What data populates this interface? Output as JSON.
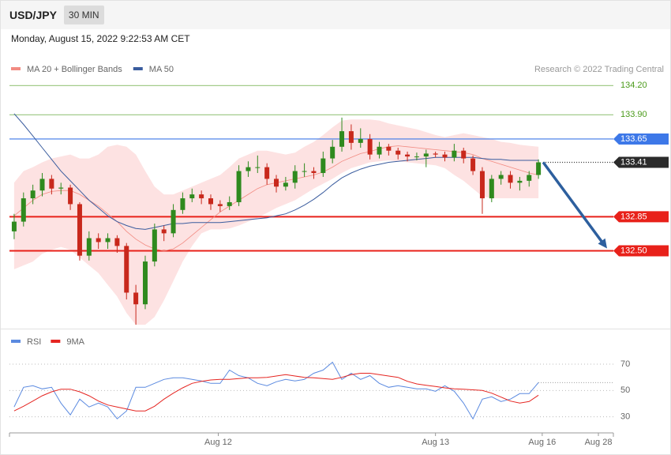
{
  "header": {
    "symbol": "USD/JPY",
    "interval": "30 MIN",
    "timestamp": "Monday, August 15, 2022 9:22:53 AM CET"
  },
  "chart_data": [
    {
      "type": "candlestick",
      "credit": "Research © 2022 Trading Central",
      "up_color": "#2f8a1e",
      "down_color": "#c8281c",
      "ohlc": [
        [
          132.7,
          132.88,
          132.62,
          132.8
        ],
        [
          132.8,
          133.1,
          132.75,
          133.04
        ],
        [
          133.04,
          133.18,
          132.98,
          133.12
        ],
        [
          133.12,
          133.3,
          133.06,
          133.24
        ],
        [
          133.24,
          133.28,
          133.08,
          133.14
        ],
        [
          133.14,
          133.2,
          133.08,
          133.15
        ],
        [
          133.15,
          133.18,
          132.92,
          132.98
        ],
        [
          132.98,
          133.0,
          132.4,
          132.45
        ],
        [
          132.45,
          132.7,
          132.4,
          132.63
        ],
        [
          132.63,
          132.68,
          132.52,
          132.59
        ],
        [
          132.59,
          132.68,
          132.52,
          132.63
        ],
        [
          132.63,
          132.66,
          132.48,
          132.55
        ],
        [
          132.55,
          132.58,
          132.0,
          132.07
        ],
        [
          132.07,
          132.15,
          131.74,
          131.95
        ],
        [
          131.95,
          132.45,
          131.9,
          132.39
        ],
        [
          132.39,
          132.78,
          132.34,
          132.72
        ],
        [
          132.72,
          132.76,
          132.6,
          132.68
        ],
        [
          132.68,
          132.98,
          132.64,
          132.92
        ],
        [
          132.92,
          133.1,
          132.88,
          133.04
        ],
        [
          133.04,
          133.14,
          133.0,
          133.08
        ],
        [
          133.08,
          133.12,
          132.98,
          133.04
        ],
        [
          133.04,
          133.08,
          132.92,
          132.98
        ],
        [
          132.98,
          133.02,
          132.9,
          132.96
        ],
        [
          132.96,
          133.06,
          132.92,
          133.0
        ],
        [
          133.0,
          133.38,
          132.96,
          133.32
        ],
        [
          133.32,
          133.42,
          133.26,
          133.36
        ],
        [
          133.36,
          133.48,
          133.3,
          133.36
        ],
        [
          133.36,
          133.4,
          133.18,
          133.24
        ],
        [
          133.24,
          133.28,
          133.1,
          133.16
        ],
        [
          133.16,
          133.26,
          133.12,
          133.2
        ],
        [
          133.2,
          133.38,
          133.14,
          133.32
        ],
        [
          133.32,
          133.4,
          133.26,
          133.32
        ],
        [
          133.32,
          133.36,
          133.24,
          133.3
        ],
        [
          133.3,
          133.52,
          133.26,
          133.45
        ],
        [
          133.45,
          133.64,
          133.4,
          133.57
        ],
        [
          133.57,
          133.87,
          133.52,
          133.73
        ],
        [
          133.73,
          133.8,
          133.54,
          133.61
        ],
        [
          133.61,
          133.76,
          133.56,
          133.65
        ],
        [
          133.65,
          133.7,
          133.44,
          133.49
        ],
        [
          133.49,
          133.62,
          133.45,
          133.57
        ],
        [
          133.57,
          133.6,
          133.48,
          133.53
        ],
        [
          133.53,
          133.56,
          133.44,
          133.49
        ],
        [
          133.49,
          133.52,
          133.42,
          133.47
        ],
        [
          133.47,
          133.51,
          133.43,
          133.47
        ],
        [
          133.47,
          133.54,
          133.36,
          133.5
        ],
        [
          133.5,
          133.52,
          133.46,
          133.49
        ],
        [
          133.49,
          133.52,
          133.42,
          133.46
        ],
        [
          133.46,
          133.6,
          133.42,
          133.53
        ],
        [
          133.53,
          133.56,
          133.4,
          133.45
        ],
        [
          133.45,
          133.48,
          133.28,
          133.32
        ],
        [
          133.32,
          133.36,
          132.88,
          133.04
        ],
        [
          133.04,
          133.28,
          133.0,
          133.24
        ],
        [
          133.24,
          133.32,
          133.18,
          133.28
        ],
        [
          133.28,
          133.32,
          133.14,
          133.2
        ],
        [
          133.2,
          133.26,
          133.12,
          133.22
        ],
        [
          133.22,
          133.32,
          133.16,
          133.28
        ],
        [
          133.28,
          133.44,
          133.24,
          133.41
        ]
      ],
      "series": [
        {
          "name": "MA 20 + Bollinger Bands",
          "color": "#f28b82",
          "band_color": "#fde2e2",
          "values": [
            132.86,
            132.94,
            133.02,
            133.08,
            133.11,
            133.12,
            133.12,
            133.08,
            133.02,
            132.96,
            132.88,
            132.8,
            132.7,
            132.62,
            132.56,
            132.52,
            132.5,
            132.52,
            132.58,
            132.66,
            132.74,
            132.82,
            132.9,
            132.96,
            133.02,
            133.08,
            133.14,
            133.18,
            133.2,
            133.22,
            133.24,
            133.26,
            133.28,
            133.31,
            133.36,
            133.42,
            133.46,
            133.5,
            133.52,
            133.55,
            133.57,
            133.58,
            133.57,
            133.56,
            133.55,
            133.54,
            133.53,
            133.52,
            133.51,
            133.49,
            133.45,
            133.42,
            133.39,
            133.36,
            133.33,
            133.3,
            133.28
          ],
          "upper": [
            133.2,
            133.32,
            133.36,
            133.41,
            133.45,
            133.47,
            133.49,
            133.45,
            133.45,
            133.49,
            133.57,
            133.59,
            133.57,
            133.49,
            133.32,
            133.16,
            133.08,
            133.08,
            133.12,
            133.16,
            133.2,
            133.24,
            133.28,
            133.36,
            133.45,
            133.49,
            133.53,
            133.53,
            133.51,
            133.49,
            133.51,
            133.57,
            133.62,
            133.69,
            133.77,
            133.84,
            133.85,
            133.85,
            133.85,
            133.84,
            133.81,
            133.79,
            133.77,
            133.75,
            133.72,
            133.69,
            133.67,
            133.69,
            133.71,
            133.69,
            133.67,
            133.65,
            133.62,
            133.61,
            133.59,
            133.58,
            133.57
          ],
          "lower": [
            132.31,
            132.35,
            132.39,
            132.47,
            132.51,
            132.54,
            132.51,
            132.43,
            132.35,
            132.27,
            132.15,
            132.03,
            131.86,
            131.74,
            131.74,
            131.82,
            131.99,
            132.19,
            132.39,
            132.55,
            132.68,
            132.72,
            132.72,
            132.73,
            132.76,
            132.8,
            132.84,
            132.89,
            132.94,
            132.98,
            133.02,
            133.08,
            133.14,
            133.19,
            133.24,
            133.3,
            133.35,
            133.38,
            133.41,
            133.42,
            133.43,
            133.42,
            133.41,
            133.4,
            133.39,
            133.38,
            133.35,
            133.28,
            133.22,
            133.14,
            133.06,
            133.04,
            133.04,
            133.04,
            133.04,
            133.04,
            133.04
          ]
        },
        {
          "name": "MA 50",
          "color": "#3a5c9e",
          "values": [
            133.91,
            133.8,
            133.68,
            133.56,
            133.44,
            133.32,
            133.22,
            133.12,
            133.02,
            132.94,
            132.86,
            132.8,
            132.76,
            132.73,
            132.72,
            132.74,
            132.76,
            132.78,
            132.78,
            132.79,
            132.79,
            132.79,
            132.79,
            132.8,
            132.81,
            132.82,
            132.83,
            132.84,
            132.86,
            132.88,
            132.92,
            132.97,
            133.03,
            133.1,
            133.18,
            133.25,
            133.3,
            133.34,
            133.37,
            133.39,
            133.41,
            133.42,
            133.43,
            133.44,
            133.45,
            133.46,
            133.46,
            133.46,
            133.46,
            133.46,
            133.45,
            133.44,
            133.44,
            133.43,
            133.43,
            133.43,
            133.43
          ]
        }
      ],
      "levels": [
        {
          "value": 134.2,
          "label": "134.20",
          "color": "#4a9a1a",
          "style": "thin",
          "box": false
        },
        {
          "value": 133.9,
          "label": "133.90",
          "color": "#4a9a1a",
          "style": "thin",
          "box": false
        },
        {
          "value": 133.65,
          "color": "#3d78e8",
          "style": "solid",
          "box": true
        },
        {
          "value": 133.41,
          "color": "#2b2b2b",
          "style": "dotted",
          "box": true
        },
        {
          "value": 132.85,
          "color": "#e8211a",
          "style": "thick",
          "box": true
        },
        {
          "value": 132.5,
          "label": "132.50",
          "color": "#e8211a",
          "style": "thick",
          "box": true
        }
      ],
      "arrow_color": "#2d5f9e",
      "ylim": [
        131.7,
        134.34
      ],
      "xlim": [
        -0.5,
        64
      ],
      "xticks": [
        {
          "value": 21.8,
          "label": "Aug 12"
        },
        {
          "value": 45.0,
          "label": "Aug 13"
        },
        {
          "value": 56.4,
          "label": "Aug 16"
        },
        {
          "value": 62.4,
          "label": "Aug 28"
        }
      ]
    },
    {
      "type": "line",
      "series": [
        {
          "name": "RSI",
          "color": "#5b8ae0",
          "values": [
            37.5,
            52.4,
            53.6,
            51.2,
            52.4,
            40.4,
            31.5,
            43.4,
            37.5,
            40.4,
            37.5,
            28.5,
            34.5,
            52.4,
            52.4,
            55.4,
            58.4,
            59.6,
            59.6,
            58.4,
            57.2,
            55.4,
            55.4,
            65.5,
            61.3,
            59.6,
            55.4,
            53.6,
            56.6,
            58.4,
            57.2,
            58.4,
            63.1,
            65.5,
            71.5,
            58.4,
            63.1,
            58.4,
            61.3,
            55.4,
            52.4,
            53.6,
            52.4,
            51.2,
            51.2,
            49.4,
            53.6,
            49.4,
            40.4,
            28.5,
            43.4,
            45.2,
            41.6,
            43.4,
            47.6,
            47.6,
            56.0
          ]
        },
        {
          "name": "9MA",
          "color": "#e52521",
          "values": [
            34.5,
            38,
            42,
            46,
            49,
            51,
            51,
            49,
            46,
            42,
            39,
            37.5,
            36,
            34.5,
            34.5,
            38,
            43.4,
            48,
            52,
            55.4,
            57,
            58,
            58.4,
            58.4,
            59,
            59.6,
            59.6,
            60,
            61,
            62,
            61,
            60,
            59.6,
            59,
            58.4,
            60,
            62,
            63.1,
            63.1,
            62,
            61,
            60,
            57,
            55,
            54,
            53,
            52,
            51.2,
            51,
            50.5,
            50,
            48,
            45,
            42,
            40.4,
            41.6,
            46.4
          ]
        }
      ],
      "ylim": [
        19,
        82
      ],
      "yticks": [
        30,
        50,
        70
      ],
      "xlim": [
        -0.5,
        64
      ]
    }
  ]
}
